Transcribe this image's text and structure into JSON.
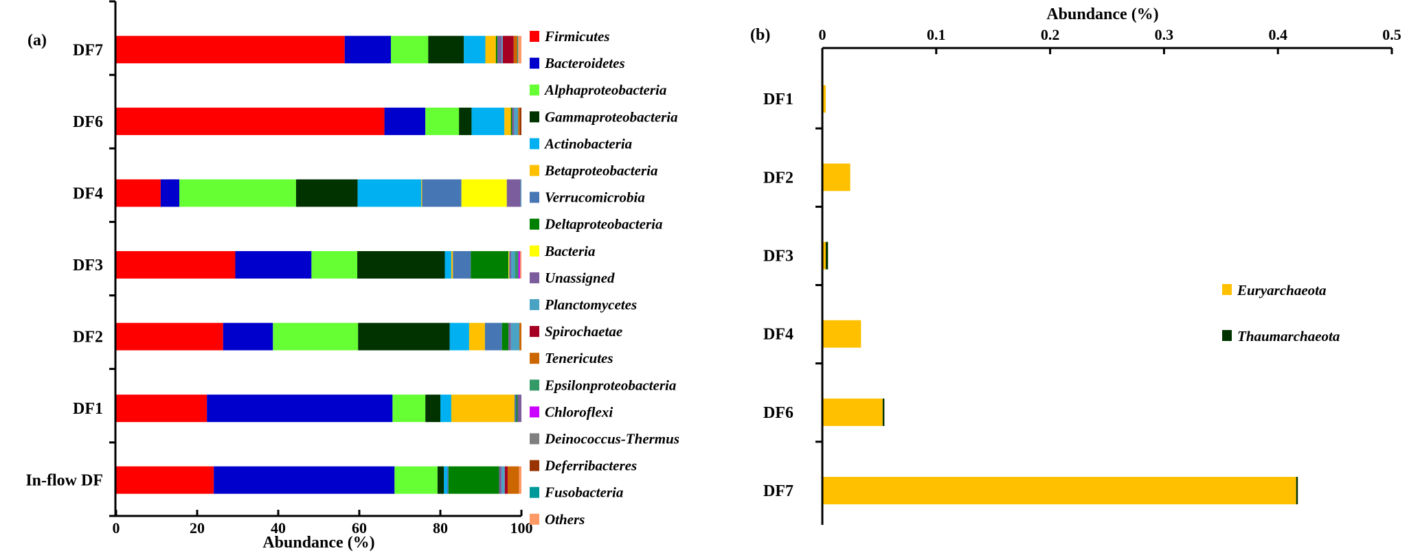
{
  "chart_data": [
    {
      "type": "bar",
      "orientation": "horizontal",
      "stacked": true,
      "panel_label": "(a)",
      "xlabel": "Abundance (%)",
      "ylabel": "",
      "xlim": [
        0,
        100
      ],
      "xticks": [
        "0",
        "20",
        "40",
        "60",
        "80",
        "100"
      ],
      "legend_position": "right",
      "categories": [
        "DF7",
        "DF6",
        "DF4",
        "DF3",
        "DF2",
        "DF1",
        "In-flow DF"
      ],
      "series": [
        {
          "name": "Firmicutes",
          "color": "#FF0000",
          "values": [
            56.4,
            66.2,
            11.0,
            29.4,
            26.4,
            22.4,
            24.1
          ]
        },
        {
          "name": "Bacteroidetes",
          "color": "#0000CC",
          "values": [
            11.4,
            10.1,
            4.6,
            18.8,
            12.3,
            45.8,
            44.6
          ]
        },
        {
          "name": "Alphaproteobacteria",
          "color": "#66FF33",
          "values": [
            9.2,
            8.3,
            28.8,
            11.3,
            21.0,
            8.1,
            10.6
          ]
        },
        {
          "name": "Gammaproteobacteria",
          "color": "#003300",
          "values": [
            8.8,
            3.1,
            15.2,
            21.6,
            22.6,
            3.7,
            1.6
          ]
        },
        {
          "name": "Actinobacteria",
          "color": "#00B0F0",
          "values": [
            5.3,
            8.1,
            15.7,
            1.6,
            4.8,
            2.7,
            0.8
          ]
        },
        {
          "name": "Betaproteobacteria",
          "color": "#FFC000",
          "values": [
            2.6,
            1.6,
            0.2,
            0.4,
            3.9,
            15.6,
            0
          ]
        },
        {
          "name": "Verrucomicrobia",
          "color": "#4676B4",
          "values": [
            0,
            0,
            9.7,
            4.4,
            4.2,
            0.45,
            0.3
          ]
        },
        {
          "name": "Deltaproteobacteria",
          "color": "#008000",
          "values": [
            0.4,
            0.3,
            0,
            9.3,
            1.6,
            0.3,
            12.5
          ]
        },
        {
          "name": "Bacteria",
          "color": "#FFFF00",
          "values": [
            0,
            0,
            11.2,
            0.2,
            0,
            0,
            0
          ]
        },
        {
          "name": "Unassigned",
          "color": "#7B5C9C",
          "values": [
            1.0,
            0.5,
            3.4,
            0.45,
            0.6,
            0.95,
            0.6
          ]
        },
        {
          "name": "Planctomycetes",
          "color": "#4BA3C3",
          "values": [
            0.3,
            1.0,
            0.2,
            0.95,
            2.1,
            0,
            0.8
          ]
        },
        {
          "name": "Spirochaetae",
          "color": "#A50021",
          "values": [
            2.7,
            0,
            0,
            0,
            0,
            0,
            0.7
          ]
        },
        {
          "name": "Tenericutes",
          "color": "#CC6600",
          "values": [
            0.9,
            0.4,
            0,
            0,
            0.5,
            0,
            2.8
          ]
        },
        {
          "name": "Epsilonproteobacteria",
          "color": "#339966",
          "values": [
            0,
            0,
            0,
            0.85,
            0,
            0,
            0
          ]
        },
        {
          "name": "Chloroflexi",
          "color": "#CC00FF",
          "values": [
            0,
            0,
            0,
            0.4,
            0,
            0,
            0
          ]
        },
        {
          "name": "Deinococcus-Thermus",
          "color": "#808080",
          "values": [
            0,
            0,
            0,
            0,
            0,
            0,
            0
          ]
        },
        {
          "name": "Deferribacteres",
          "color": "#993300",
          "values": [
            0,
            0.4,
            0,
            0,
            0,
            0,
            0
          ]
        },
        {
          "name": "Fusobacteria",
          "color": "#009999",
          "values": [
            0.2,
            0,
            0,
            0,
            0,
            0,
            0
          ]
        },
        {
          "name": "Others",
          "color": "#FF9966",
          "values": [
            0.8,
            0,
            0,
            0.35,
            0,
            0,
            0.6
          ]
        }
      ]
    },
    {
      "type": "bar",
      "orientation": "horizontal",
      "stacked": true,
      "panel_label": "(b)",
      "xlabel": "Abundance (%)",
      "xaxis_position": "top",
      "xlim": [
        0,
        0.5
      ],
      "xticks": [
        "0",
        "0.1",
        "0.2",
        "0.3",
        "0.4",
        "0.5"
      ],
      "legend_position": "right",
      "categories": [
        "DF1",
        "DF2",
        "DF3",
        "DF4",
        "DF6",
        "DF7"
      ],
      "series": [
        {
          "name": "Euryarchaeota",
          "color": "#FFC000",
          "values": [
            0.003,
            0.0245,
            0.003,
            0.034,
            0.053,
            0.416
          ]
        },
        {
          "name": "Thaumarchaeota",
          "color": "#003300",
          "values": [
            0,
            0,
            0.002,
            0,
            0.0015,
            0.0015
          ]
        }
      ]
    }
  ]
}
